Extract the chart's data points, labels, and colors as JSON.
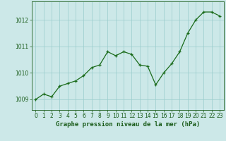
{
  "x": [
    0,
    1,
    2,
    3,
    4,
    5,
    6,
    7,
    8,
    9,
    10,
    11,
    12,
    13,
    14,
    15,
    16,
    17,
    18,
    19,
    20,
    21,
    22,
    23
  ],
  "y": [
    1009.0,
    1009.2,
    1009.1,
    1009.5,
    1009.6,
    1009.7,
    1009.9,
    1010.2,
    1010.3,
    1010.8,
    1010.65,
    1010.8,
    1010.7,
    1010.3,
    1010.25,
    1009.55,
    1010.0,
    1010.35,
    1010.8,
    1011.5,
    1012.0,
    1012.3,
    1012.3,
    1012.15
  ],
  "line_color": "#1a6b1a",
  "marker_color": "#1a6b1a",
  "bg_color": "#cce8e8",
  "grid_color": "#99cccc",
  "axis_color": "#1a5c1a",
  "xlabel": "Graphe pression niveau de la mer (hPa)",
  "xlabel_fontsize": 6.5,
  "tick_fontsize": 5.5,
  "yticks": [
    1009,
    1010,
    1011,
    1012
  ],
  "ylim": [
    1008.6,
    1012.7
  ],
  "xlim": [
    -0.5,
    23.5
  ]
}
